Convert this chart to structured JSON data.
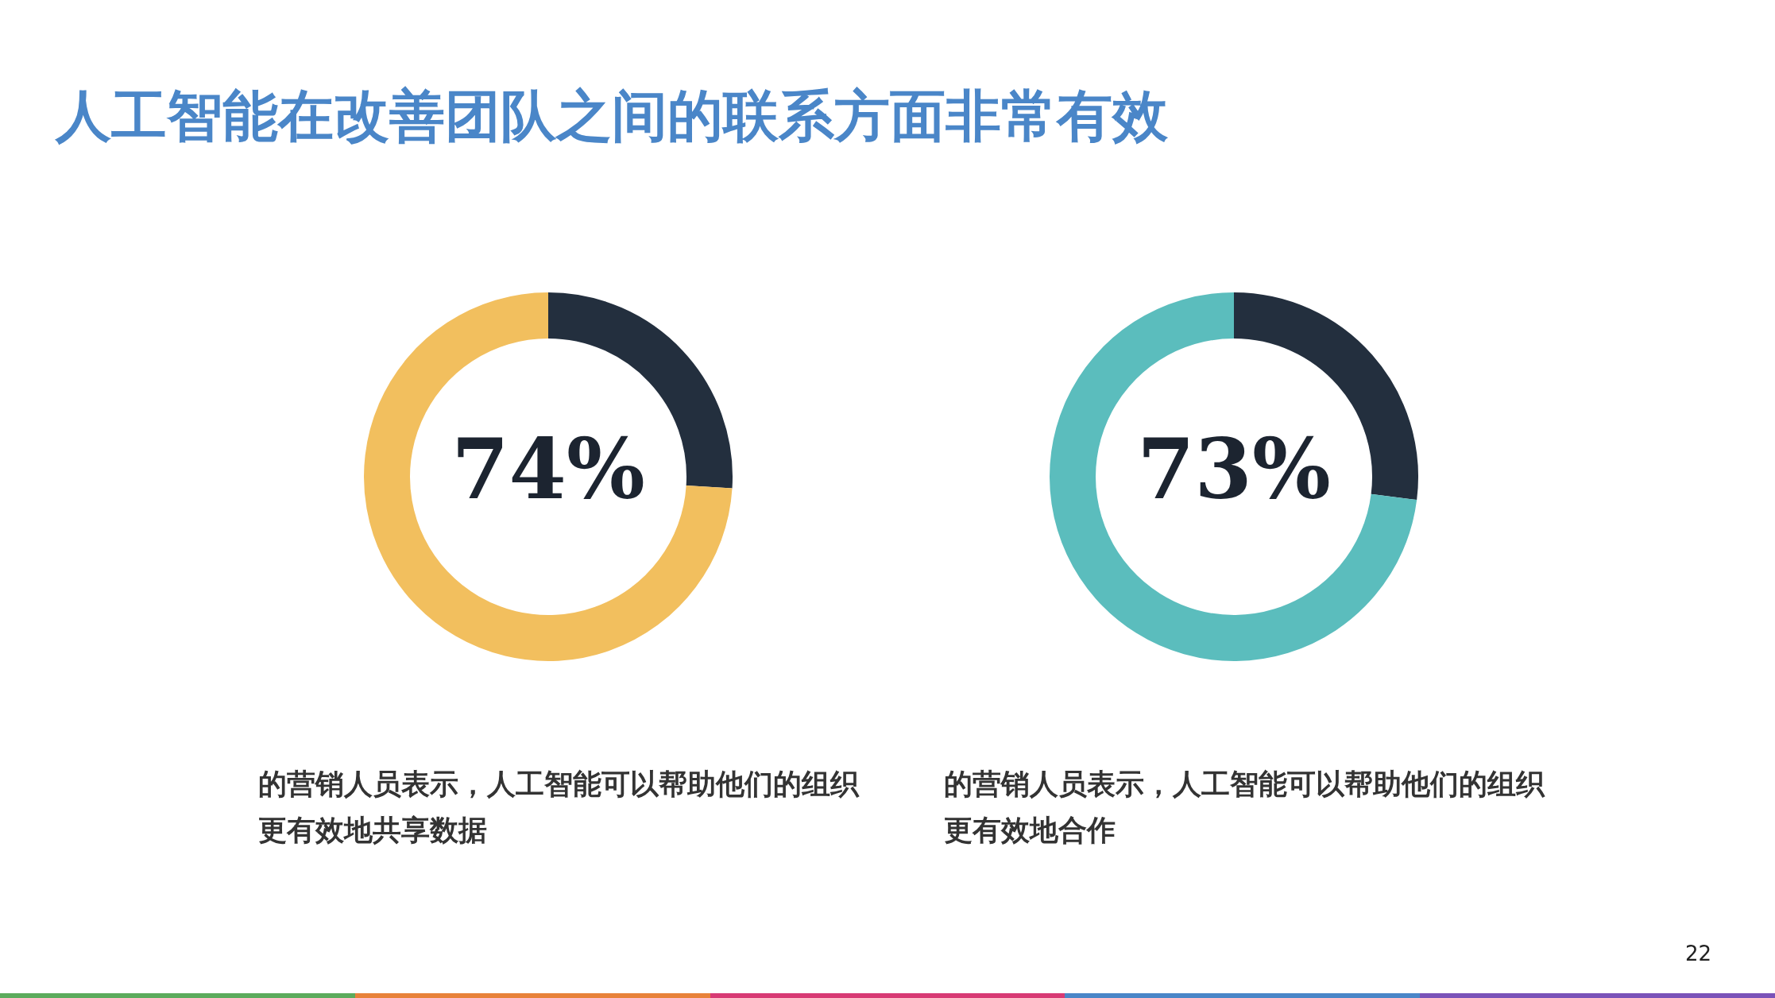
{
  "chart_data": [
    {
      "type": "donut",
      "title": "人工智能在改善团队之间的联系方面非常有效",
      "categories": [
        null,
        null
      ],
      "values": [
        26,
        74
      ],
      "colors": [
        "#232f3e",
        "#f2bf5e"
      ],
      "value_labels": [
        null,
        "74%"
      ],
      "legend": false,
      "annotations": [
        "的营销人员表示，人工智能可以帮助他们的组织更有效地共享数据"
      ]
    },
    {
      "type": "donut",
      "categories": [
        null,
        null
      ],
      "values": [
        27,
        73
      ],
      "colors": [
        "#232f3e",
        "#5bbdbd"
      ],
      "value_labels": [
        null,
        "73%"
      ],
      "legend": false,
      "annotations": [
        "的营销人员表示，人工智能可以帮助他们的组织更有效地合作",
        "22"
      ]
    }
  ]
}
